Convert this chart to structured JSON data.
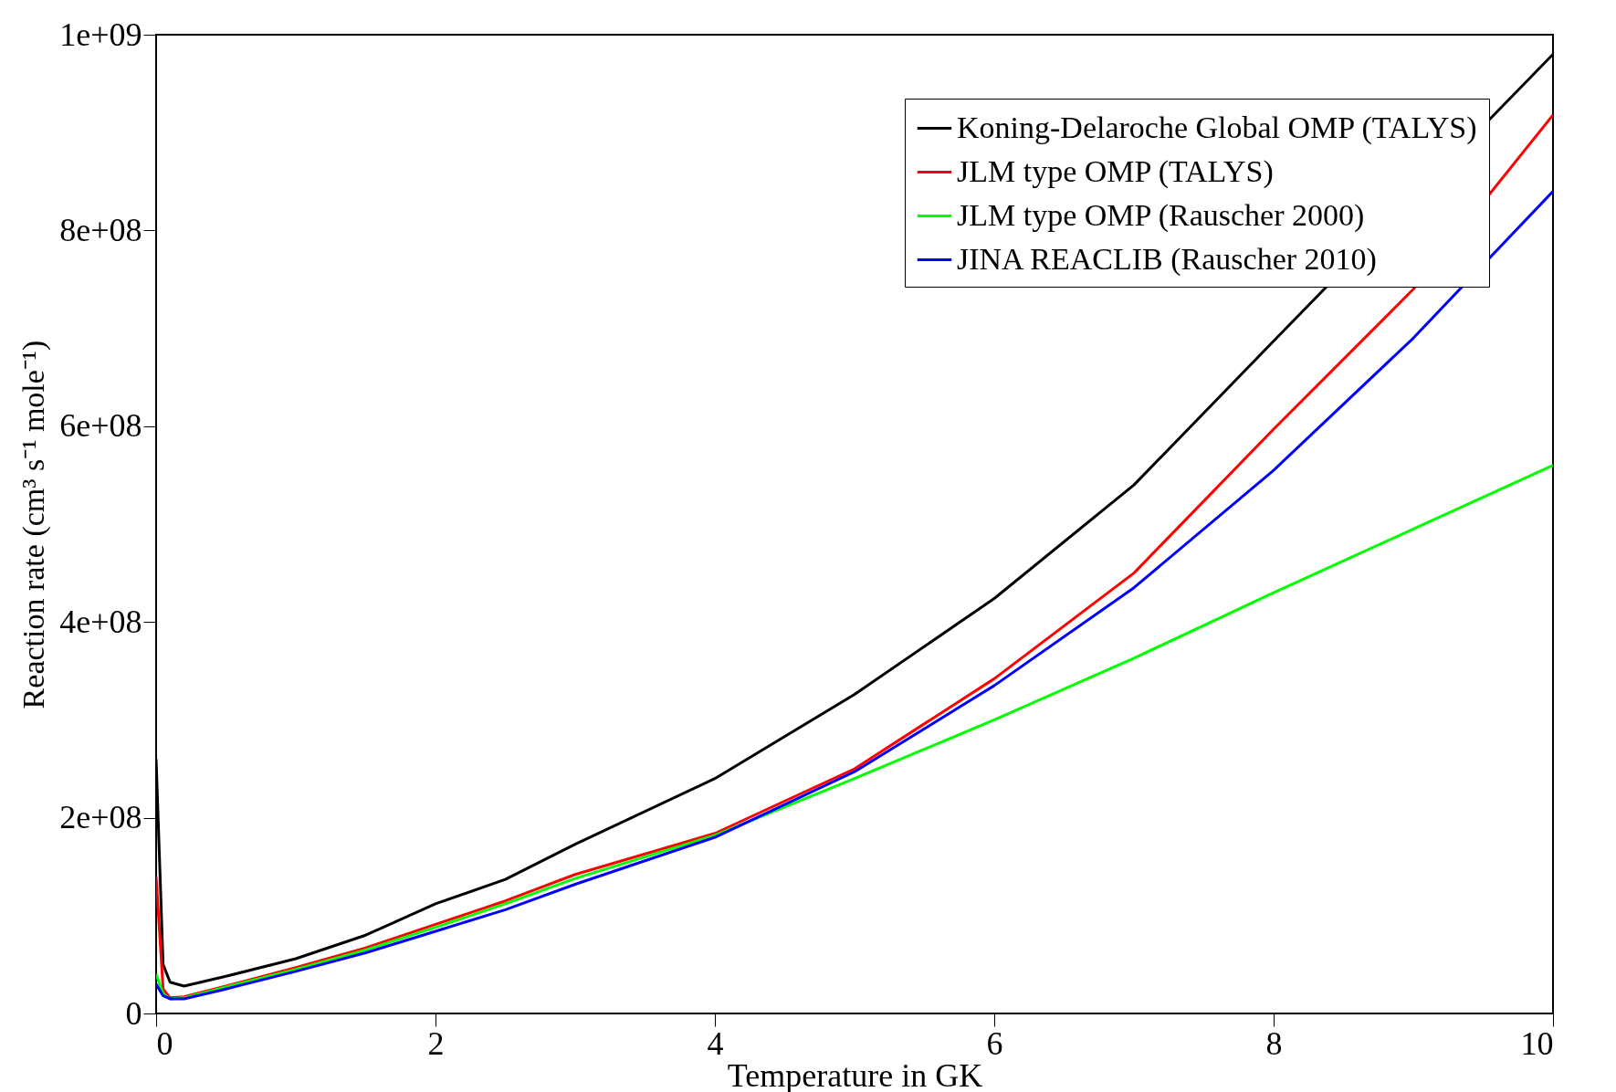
{
  "chart_data": {
    "type": "line",
    "xlabel": "Temperature in GK",
    "ylabel": "Reaction rate (cm³ s⁻¹ mole⁻¹)",
    "xlim": [
      0,
      10
    ],
    "ylim": [
      0,
      1000000000
    ],
    "xticks": [
      0,
      2,
      4,
      6,
      8,
      10
    ],
    "yticks": [
      0,
      {
        "value": 200000000,
        "label": "2e+08"
      },
      {
        "value": 400000000,
        "label": "4e+08"
      },
      {
        "value": 600000000,
        "label": "6e+08"
      },
      {
        "value": 800000000,
        "label": "8e+08"
      },
      {
        "value": 1000000000,
        "label": "1e+09"
      }
    ],
    "grid": false,
    "legend": "top right",
    "line_style": "solid",
    "marker": "none",
    "x": [
      0,
      0.05,
      0.1,
      0.2,
      0.5,
      1,
      1.5,
      2,
      2.5,
      3,
      4,
      5,
      6,
      7,
      8,
      9,
      10
    ],
    "series": [
      {
        "name": "Koning-Delaroche Global OMP (TALYS)",
        "color": "#000000",
        "values": [
          260000000,
          50000000,
          32000000,
          28000000,
          38000000,
          56000000,
          80000000,
          112000000,
          137000000,
          173000000,
          240000000,
          326000000,
          424000000,
          540000000,
          687000000,
          null,
          980000000
        ]
      },
      {
        "name": "JLM type OMP (TALYS)",
        "color": "#ff0000",
        "values": [
          140000000,
          25000000,
          16000000,
          17000000,
          28000000,
          47000000,
          67000000,
          91000000,
          115000000,
          142000000,
          184000000,
          250000000,
          342000000,
          450000000,
          597000000,
          740000000,
          918000000
        ]
      },
      {
        "name": "JLM type OMP (Rauscher 2000)",
        "color": "#00ff00",
        "values": [
          40000000,
          20000000,
          15000000,
          16000000,
          27000000,
          45000000,
          65000000,
          88000000,
          112000000,
          138000000,
          182000000,
          240000000,
          300000000,
          363000000,
          430000000,
          495000000,
          560000000
        ]
      },
      {
        "name": "JINA REACLIB (Rauscher 2010)",
        "color": "#0000ff",
        "values": [
          30000000,
          18000000,
          15000000,
          15000000,
          25000000,
          43000000,
          62000000,
          84000000,
          106000000,
          132000000,
          180000000,
          247000000,
          335000000,
          435000000,
          555000000,
          690000000,
          840000000
        ]
      }
    ]
  }
}
